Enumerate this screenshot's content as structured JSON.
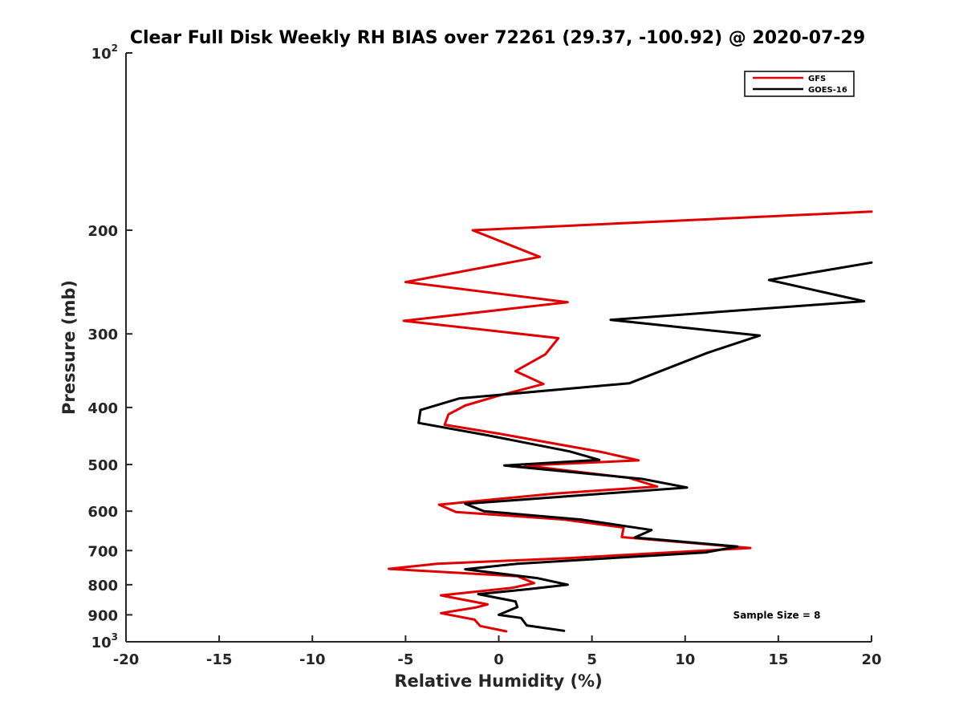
{
  "chart_data": {
    "type": "line",
    "title": "Clear Full Disk Weekly RH BIAS over 72261 (29.37, -100.92) @ 2020-07-29",
    "xlabel": "Relative Humidity (%)",
    "ylabel": "Pressure (mb)",
    "xlim": [
      -20,
      20
    ],
    "ylim": [
      100,
      1000
    ],
    "y_scale": "log",
    "y_reversed": true,
    "grid": false,
    "legend_position": "top-right",
    "x_ticks": [
      "-20",
      "-15",
      "-10",
      "-5",
      "0",
      "5",
      "10",
      "15",
      "20"
    ],
    "y_ticks": [
      {
        "value": 100,
        "base": "10",
        "exp": "2"
      },
      {
        "value": 200,
        "label": "200"
      },
      {
        "value": 300,
        "label": "300"
      },
      {
        "value": 400,
        "label": "400"
      },
      {
        "value": 500,
        "label": "500"
      },
      {
        "value": 600,
        "label": "600"
      },
      {
        "value": 700,
        "label": "700"
      },
      {
        "value": 800,
        "label": "800"
      },
      {
        "value": 900,
        "label": "900"
      },
      {
        "value": 1000,
        "base": "10",
        "exp": "3"
      }
    ],
    "annotation": "Sample Size = 8",
    "series": [
      {
        "name": "GFS",
        "color": "#e00000",
        "points": [
          {
            "x": 20.0,
            "y": 186
          },
          {
            "x": -1.4,
            "y": 200
          },
          {
            "x": 2.2,
            "y": 222
          },
          {
            "x": -5.0,
            "y": 245
          },
          {
            "x": 3.7,
            "y": 265
          },
          {
            "x": -5.1,
            "y": 285
          },
          {
            "x": 3.2,
            "y": 305
          },
          {
            "x": 2.5,
            "y": 325
          },
          {
            "x": 0.9,
            "y": 347
          },
          {
            "x": 2.4,
            "y": 365
          },
          {
            "x": 0.0,
            "y": 382
          },
          {
            "x": -1.8,
            "y": 397
          },
          {
            "x": -2.7,
            "y": 411
          },
          {
            "x": -2.9,
            "y": 428
          },
          {
            "x": 0.0,
            "y": 443
          },
          {
            "x": 5.5,
            "y": 476
          },
          {
            "x": 7.5,
            "y": 492
          },
          {
            "x": 1.4,
            "y": 502
          },
          {
            "x": 7.0,
            "y": 527
          },
          {
            "x": 8.5,
            "y": 545
          },
          {
            "x": 3.0,
            "y": 560
          },
          {
            "x": -3.2,
            "y": 585
          },
          {
            "x": -2.3,
            "y": 602
          },
          {
            "x": 3.5,
            "y": 620
          },
          {
            "x": 6.7,
            "y": 640
          },
          {
            "x": 6.6,
            "y": 664
          },
          {
            "x": 13.5,
            "y": 693
          },
          {
            "x": 3.7,
            "y": 721
          },
          {
            "x": -3.3,
            "y": 737
          },
          {
            "x": -5.9,
            "y": 752
          },
          {
            "x": 1.0,
            "y": 774
          },
          {
            "x": 1.9,
            "y": 795
          },
          {
            "x": 0.7,
            "y": 810
          },
          {
            "x": -3.1,
            "y": 834
          },
          {
            "x": -0.6,
            "y": 864
          },
          {
            "x": -1.2,
            "y": 874
          },
          {
            "x": -3.1,
            "y": 894
          },
          {
            "x": -1.3,
            "y": 917
          },
          {
            "x": -1.0,
            "y": 940
          },
          {
            "x": 0.4,
            "y": 960
          }
        ]
      },
      {
        "name": "GOES-16",
        "color": "#000000",
        "points": [
          {
            "x": 20.0,
            "y": 227
          },
          {
            "x": 14.5,
            "y": 243
          },
          {
            "x": 19.6,
            "y": 264
          },
          {
            "x": 6.0,
            "y": 284
          },
          {
            "x": 14.0,
            "y": 302
          },
          {
            "x": 11.2,
            "y": 323
          },
          {
            "x": 7.0,
            "y": 364
          },
          {
            "x": -2.1,
            "y": 386
          },
          {
            "x": -4.2,
            "y": 404
          },
          {
            "x": -4.3,
            "y": 425
          },
          {
            "x": -0.6,
            "y": 446
          },
          {
            "x": 3.8,
            "y": 475
          },
          {
            "x": 5.4,
            "y": 491
          },
          {
            "x": 0.3,
            "y": 502
          },
          {
            "x": 7.7,
            "y": 529
          },
          {
            "x": 10.1,
            "y": 547
          },
          {
            "x": -1.8,
            "y": 583
          },
          {
            "x": -0.8,
            "y": 600
          },
          {
            "x": 4.4,
            "y": 620
          },
          {
            "x": 8.2,
            "y": 646
          },
          {
            "x": 7.3,
            "y": 665
          },
          {
            "x": 12.8,
            "y": 689
          },
          {
            "x": 11.1,
            "y": 705
          },
          {
            "x": 1.0,
            "y": 737
          },
          {
            "x": -1.8,
            "y": 753
          },
          {
            "x": 2.1,
            "y": 780
          },
          {
            "x": 3.7,
            "y": 800
          },
          {
            "x": 1.6,
            "y": 814
          },
          {
            "x": -1.1,
            "y": 830
          },
          {
            "x": 0.9,
            "y": 854
          },
          {
            "x": 1.0,
            "y": 873
          },
          {
            "x": 0.0,
            "y": 900
          },
          {
            "x": 1.2,
            "y": 911
          },
          {
            "x": 1.5,
            "y": 938
          },
          {
            "x": 3.5,
            "y": 958
          }
        ]
      }
    ]
  }
}
